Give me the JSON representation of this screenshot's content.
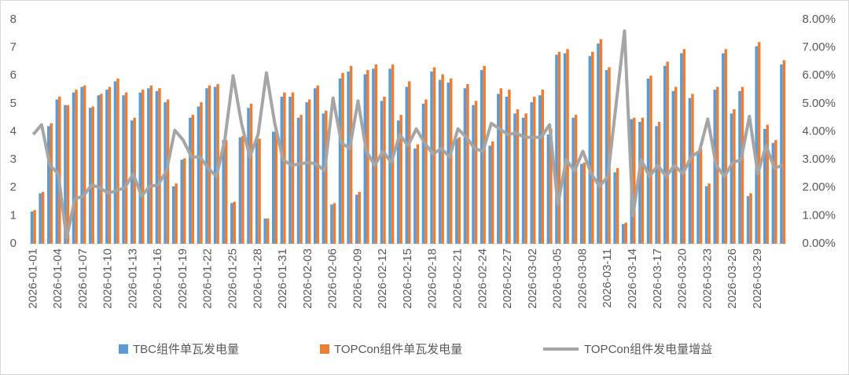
{
  "chart_data": {
    "type": "bar_line",
    "categories": [
      "2026-01-01",
      null,
      null,
      "2026-01-04",
      null,
      null,
      "2026-01-07",
      null,
      null,
      "2026-01-10",
      null,
      null,
      "2026-01-13",
      null,
      null,
      "2026-01-16",
      null,
      null,
      "2026-01-19",
      null,
      null,
      "2026-01-22",
      null,
      null,
      "2026-01-25",
      null,
      null,
      "2026-01-28",
      null,
      null,
      "2026-01-31",
      null,
      null,
      "2026-02-03",
      null,
      null,
      "2026-02-06",
      null,
      null,
      "2026-02-09",
      null,
      null,
      "2026-02-12",
      null,
      null,
      "2026-02-15",
      null,
      null,
      "2026-02-18",
      null,
      null,
      "2026-02-21",
      null,
      null,
      "2026-02-24",
      null,
      null,
      "2026-02-27",
      null,
      null,
      "2026-03-02",
      null,
      null,
      "2026-03-05",
      null,
      null,
      "2026-03-08",
      null,
      null,
      "2026-03-11",
      null,
      null,
      "2026-03-14",
      null,
      null,
      "2026-03-17",
      null,
      null,
      "2026-03-20",
      null,
      null,
      "2026-03-23",
      null,
      null,
      "2026-03-26",
      null,
      null,
      "2026-03-29",
      null,
      null,
      null
    ],
    "series": [
      {
        "name": "TBC组件单瓦发电量",
        "color": "#5b9bd5",
        "kind": "bar",
        "values": [
          1.15,
          1.8,
          4.2,
          5.15,
          4.95,
          5.4,
          5.6,
          4.85,
          5.3,
          5.5,
          5.8,
          5.3,
          4.4,
          5.4,
          5.55,
          5.45,
          5.05,
          2.05,
          3.0,
          4.5,
          4.9,
          5.55,
          5.6,
          3.7,
          1.45,
          3.8,
          4.85,
          3.75,
          0.9,
          4.0,
          5.25,
          5.25,
          4.5,
          5.05,
          5.55,
          4.65,
          1.4,
          5.9,
          6.15,
          1.75,
          6.05,
          6.25,
          5.1,
          6.25,
          4.4,
          5.6,
          3.4,
          5.0,
          6.15,
          5.85,
          5.75,
          3.75,
          5.55,
          4.95,
          6.2,
          3.5,
          5.35,
          5.25,
          4.65,
          4.5,
          5.05,
          5.3,
          3.9,
          6.75,
          6.8,
          4.5,
          2.85,
          6.7,
          7.15,
          6.2,
          2.55,
          0.7,
          4.45,
          4.35,
          5.9,
          4.2,
          6.35,
          5.45,
          6.8,
          5.2,
          3.3,
          2.05,
          5.5,
          6.8,
          4.65,
          5.45,
          1.7,
          7.05,
          4.1,
          3.6,
          6.4
        ]
      },
      {
        "name": "TOPCon组件单瓦发电量",
        "color": "#ed7d31",
        "kind": "bar",
        "values": [
          1.2,
          1.85,
          4.3,
          5.25,
          4.95,
          5.5,
          5.65,
          4.9,
          5.35,
          5.6,
          5.9,
          5.4,
          4.5,
          5.5,
          5.65,
          5.55,
          5.15,
          2.15,
          3.05,
          4.6,
          5.05,
          5.65,
          5.7,
          3.7,
          1.5,
          3.85,
          5.0,
          3.75,
          0.9,
          4.05,
          5.4,
          5.4,
          4.6,
          5.15,
          5.65,
          4.75,
          1.45,
          6.1,
          6.35,
          1.85,
          6.2,
          6.4,
          5.25,
          6.4,
          4.6,
          5.8,
          3.55,
          5.15,
          6.3,
          6.05,
          5.9,
          3.8,
          5.7,
          5.1,
          6.35,
          3.65,
          5.55,
          5.5,
          4.8,
          4.65,
          5.25,
          5.5,
          4.1,
          6.85,
          6.95,
          4.6,
          2.9,
          6.85,
          7.3,
          6.3,
          2.7,
          0.75,
          4.5,
          4.5,
          6.0,
          4.35,
          6.5,
          5.6,
          6.95,
          5.35,
          3.4,
          2.15,
          5.6,
          6.95,
          4.8,
          5.6,
          1.8,
          7.2,
          4.25,
          3.7,
          6.55
        ]
      },
      {
        "name": "TOPCon组件发电量增益",
        "color": "#a5a5a5",
        "kind": "line",
        "axis": "y2",
        "values": [
          3.9,
          4.25,
          2.8,
          2.5,
          0.2,
          1.6,
          1.7,
          2.1,
          2.0,
          1.8,
          1.9,
          2.0,
          2.5,
          1.7,
          2.05,
          2.1,
          2.6,
          4.05,
          3.7,
          3.1,
          3.1,
          2.7,
          2.4,
          3.7,
          6.0,
          4.3,
          3.1,
          3.9,
          6.1,
          4.3,
          3.0,
          2.8,
          2.85,
          2.9,
          2.85,
          2.6,
          5.2,
          3.6,
          3.4,
          5.1,
          3.3,
          2.8,
          3.3,
          2.9,
          3.9,
          3.5,
          4.1,
          3.6,
          3.2,
          3.4,
          3.1,
          4.1,
          3.8,
          3.4,
          3.3,
          4.3,
          4.1,
          3.9,
          3.95,
          3.8,
          3.8,
          3.8,
          4.25,
          1.4,
          3.0,
          2.6,
          3.3,
          2.5,
          2.05,
          2.4,
          5.0,
          7.6,
          1.0,
          3.0,
          2.4,
          2.8,
          2.4,
          2.8,
          2.5,
          3.1,
          3.3,
          4.45,
          2.8,
          2.4,
          2.9,
          3.0,
          4.55,
          2.5,
          3.5,
          2.7,
          2.8
        ]
      }
    ],
    "ylim": [
      0,
      8
    ],
    "yticks": [
      0,
      1,
      2,
      3,
      4,
      5,
      6,
      7,
      8
    ],
    "y2lim": [
      0,
      8
    ],
    "y2ticks": [
      {
        "value": 0,
        "label": "0.00%"
      },
      {
        "value": 1,
        "label": "1.00%"
      },
      {
        "value": 2,
        "label": "2.00%"
      },
      {
        "value": 3,
        "label": "3.00%"
      },
      {
        "value": 4,
        "label": "4.00%"
      },
      {
        "value": 5,
        "label": "5.00%"
      },
      {
        "value": 6,
        "label": "6.00%"
      },
      {
        "value": 7,
        "label": "7.00%"
      },
      {
        "value": 8,
        "label": "8.00%"
      }
    ],
    "grid": false,
    "legend": "bottom"
  }
}
